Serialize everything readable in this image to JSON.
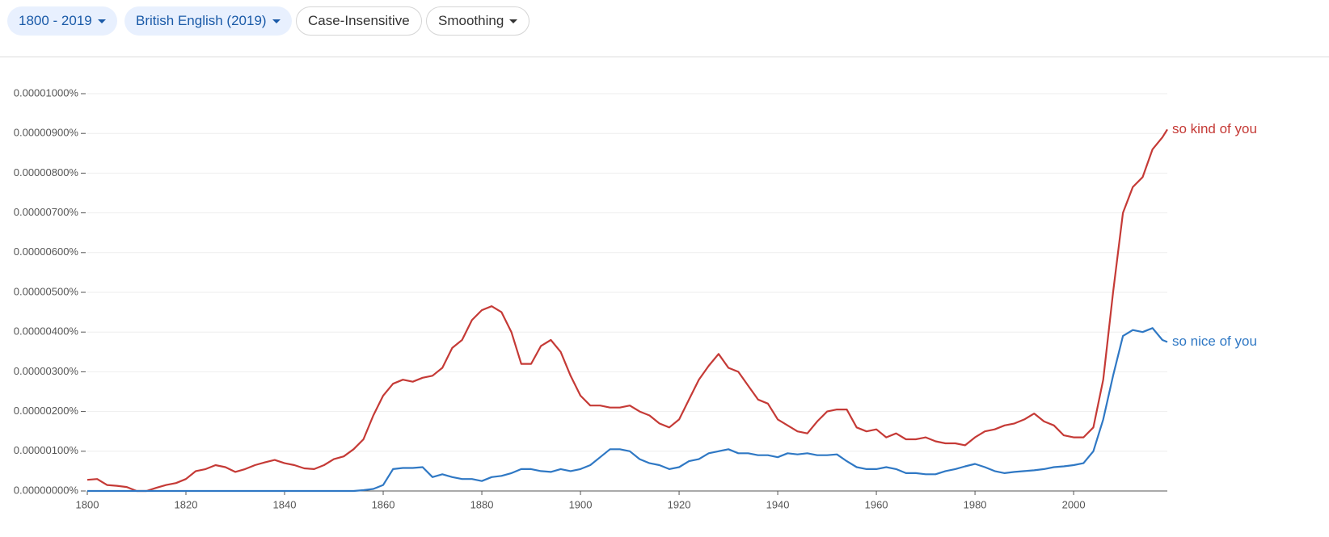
{
  "toolbar": {
    "buttons": [
      "1800 - 2019",
      "British English (2019)",
      "Case-Insensitive",
      "Smoothing"
    ]
  },
  "chart_data": {
    "type": "line",
    "x": [
      1800,
      1802,
      1804,
      1806,
      1808,
      1810,
      1812,
      1814,
      1816,
      1818,
      1820,
      1822,
      1824,
      1826,
      1828,
      1830,
      1832,
      1834,
      1836,
      1838,
      1840,
      1842,
      1844,
      1846,
      1848,
      1850,
      1852,
      1854,
      1856,
      1858,
      1860,
      1862,
      1864,
      1866,
      1868,
      1870,
      1872,
      1874,
      1876,
      1878,
      1880,
      1882,
      1884,
      1886,
      1888,
      1890,
      1892,
      1894,
      1896,
      1898,
      1900,
      1902,
      1904,
      1906,
      1908,
      1910,
      1912,
      1914,
      1916,
      1918,
      1920,
      1922,
      1924,
      1926,
      1928,
      1930,
      1932,
      1934,
      1936,
      1938,
      1940,
      1942,
      1944,
      1946,
      1948,
      1950,
      1952,
      1954,
      1956,
      1958,
      1960,
      1962,
      1964,
      1966,
      1968,
      1970,
      1972,
      1974,
      1976,
      1978,
      1980,
      1982,
      1984,
      1986,
      1988,
      1990,
      1992,
      1994,
      1996,
      1998,
      2000,
      2002,
      2004,
      2006,
      2008,
      2010,
      2012,
      2014,
      2016,
      2018,
      2019
    ],
    "series": [
      {
        "name": "so kind of you",
        "color": "#c53a36",
        "values": [
          2.8e-07,
          3e-07,
          1.5e-07,
          1.3e-07,
          1e-07,
          0,
          0,
          8e-08,
          1.5e-07,
          2e-07,
          3e-07,
          5e-07,
          5.5e-07,
          6.5e-07,
          6e-07,
          4.8e-07,
          5.5e-07,
          6.5e-07,
          7.2e-07,
          7.8e-07,
          7e-07,
          6.5e-07,
          5.7e-07,
          5.5e-07,
          6.5e-07,
          8e-07,
          8.7e-07,
          1.05e-06,
          1.3e-06,
          1.9e-06,
          2.4e-06,
          2.7e-06,
          2.8e-06,
          2.75e-06,
          2.85e-06,
          2.9e-06,
          3.1e-06,
          3.6e-06,
          3.8e-06,
          4.3e-06,
          4.55e-06,
          4.65e-06,
          4.5e-06,
          4e-06,
          3.2e-06,
          3.2e-06,
          3.65e-06,
          3.8e-06,
          3.5e-06,
          2.9e-06,
          2.4e-06,
          2.15e-06,
          2.15e-06,
          2.1e-06,
          2.1e-06,
          2.15e-06,
          2e-06,
          1.9e-06,
          1.7e-06,
          1.6e-06,
          1.8e-06,
          2.3e-06,
          2.8e-06,
          3.15e-06,
          3.45e-06,
          3.1e-06,
          3e-06,
          2.65e-06,
          2.3e-06,
          2.2e-06,
          1.8e-06,
          1.65e-06,
          1.5e-06,
          1.45e-06,
          1.75e-06,
          2e-06,
          2.05e-06,
          2.05e-06,
          1.6e-06,
          1.5e-06,
          1.55e-06,
          1.35e-06,
          1.45e-06,
          1.3e-06,
          1.3e-06,
          1.35e-06,
          1.25e-06,
          1.2e-06,
          1.2e-06,
          1.15e-06,
          1.35e-06,
          1.5e-06,
          1.55e-06,
          1.65e-06,
          1.7e-06,
          1.8e-06,
          1.95e-06,
          1.75e-06,
          1.65e-06,
          1.4e-06,
          1.35e-06,
          1.35e-06,
          1.6e-06,
          2.8e-06,
          5e-06,
          7e-06,
          7.65e-06,
          7.9e-06,
          8.6e-06,
          8.9e-06,
          9.1e-06
        ]
      },
      {
        "name": "so nice of you",
        "color": "#2f78c4",
        "values": [
          0,
          0,
          0,
          0,
          0,
          0,
          0,
          0,
          0,
          0,
          0,
          0,
          0,
          0,
          0,
          0,
          0,
          0,
          0,
          0,
          0,
          0,
          0,
          0,
          0,
          0,
          0,
          0,
          2e-08,
          5e-08,
          1.5e-07,
          5.5e-07,
          5.8e-07,
          5.8e-07,
          6e-07,
          3.5e-07,
          4.2e-07,
          3.5e-07,
          3e-07,
          3e-07,
          2.5e-07,
          3.5e-07,
          3.8e-07,
          4.5e-07,
          5.5e-07,
          5.5e-07,
          5e-07,
          4.8e-07,
          5.5e-07,
          5e-07,
          5.5e-07,
          6.5e-07,
          8.5e-07,
          1.05e-06,
          1.05e-06,
          1e-06,
          8e-07,
          7e-07,
          6.5e-07,
          5.5e-07,
          6e-07,
          7.5e-07,
          8e-07,
          9.5e-07,
          1e-06,
          1.05e-06,
          9.5e-07,
          9.5e-07,
          9e-07,
          9e-07,
          8.5e-07,
          9.5e-07,
          9.2e-07,
          9.5e-07,
          9e-07,
          9e-07,
          9.2e-07,
          7.5e-07,
          6e-07,
          5.5e-07,
          5.5e-07,
          6e-07,
          5.5e-07,
          4.5e-07,
          4.5e-07,
          4.2e-07,
          4.2e-07,
          5e-07,
          5.5e-07,
          6.2e-07,
          6.8e-07,
          6e-07,
          5e-07,
          4.5e-07,
          4.8e-07,
          5e-07,
          5.2e-07,
          5.5e-07,
          6e-07,
          6.2e-07,
          6.5e-07,
          7e-07,
          1e-06,
          1.8e-06,
          2.9e-06,
          3.9e-06,
          4.05e-06,
          4e-06,
          4.1e-06,
          3.8e-06,
          3.75e-06
        ]
      }
    ],
    "xlim": [
      1800,
      2019
    ],
    "xticks": [
      1800,
      1820,
      1840,
      1860,
      1880,
      1900,
      1920,
      1940,
      1960,
      1980,
      2000
    ],
    "ylim": [
      0,
      1e-05
    ],
    "yticks": [
      {
        "value": 0,
        "label": "0.00000000%"
      },
      {
        "value": 1e-06,
        "label": "0.00000100%"
      },
      {
        "value": 2e-06,
        "label": "0.00000200%"
      },
      {
        "value": 3e-06,
        "label": "0.00000300%"
      },
      {
        "value": 4e-06,
        "label": "0.00000400%"
      },
      {
        "value": 5e-06,
        "label": "0.00000500%"
      },
      {
        "value": 6e-06,
        "label": "0.00000600%"
      },
      {
        "value": 7e-06,
        "label": "0.00000700%"
      },
      {
        "value": 8e-06,
        "label": "0.00000800%"
      },
      {
        "value": 9e-06,
        "label": "0.00000900%"
      },
      {
        "value": 1e-05,
        "label": "0.00001000%"
      }
    ],
    "grid": true
  }
}
